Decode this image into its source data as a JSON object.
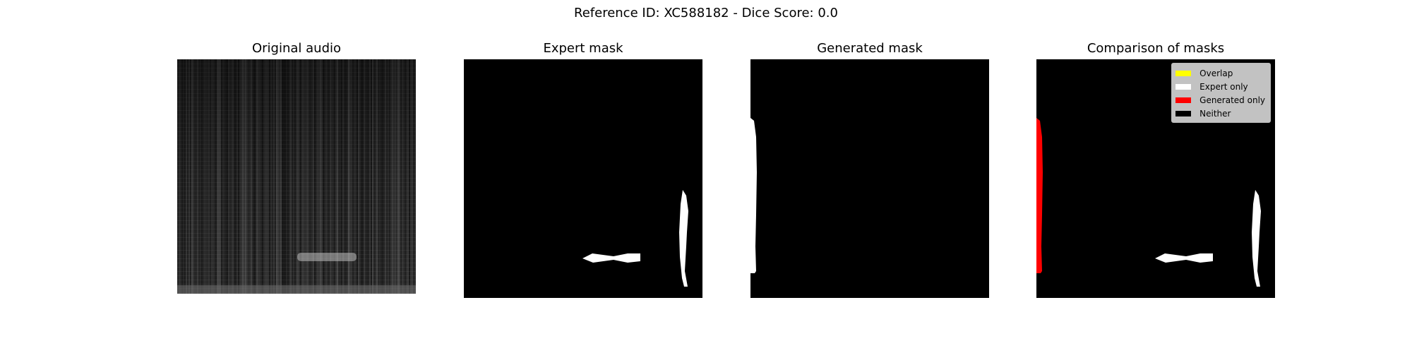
{
  "figure": {
    "title": "Reference ID: XC588182 - Dice Score: 0.0"
  },
  "panels": [
    {
      "title": "Original audio"
    },
    {
      "title": "Expert mask"
    },
    {
      "title": "Generated mask"
    },
    {
      "title": "Comparison of masks"
    }
  ],
  "legend": {
    "items": [
      {
        "label": "Overlap",
        "color": "#ffff00"
      },
      {
        "label": "Expert only",
        "color": "#ffffff"
      },
      {
        "label": "Generated only",
        "color": "#ff0000"
      },
      {
        "label": "Neither",
        "color": "#000000"
      }
    ]
  },
  "colors": {
    "background": "#000000",
    "expert": "#ffffff",
    "generated": "#ff0000"
  }
}
